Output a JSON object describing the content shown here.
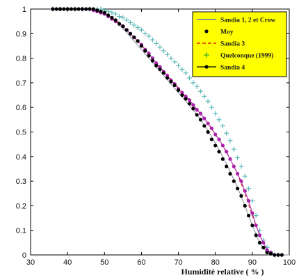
{
  "chart_data": {
    "type": "line",
    "title": "",
    "xlabel": "Humidité relative ( % )",
    "ylabel": "",
    "xlim": [
      30,
      100
    ],
    "ylim": [
      0,
      1
    ],
    "xticks": [
      "30",
      "40",
      "50",
      "60",
      "70",
      "80",
      "90",
      "100"
    ],
    "yticks": [
      "0",
      "0.1",
      "0.2",
      "0.3",
      "0.4",
      "0.5",
      "0.6",
      "0.7",
      "0.8",
      "0.9",
      "1"
    ],
    "grid": false,
    "legend_position": "top-right",
    "legend_bg": "#ffff00",
    "series": [
      {
        "name": "Sandia 1, 2 et Crow",
        "style": "line",
        "color": "#8a8aa0",
        "x": [
          36,
          40,
          45,
          48,
          50,
          52,
          54,
          56,
          58,
          60,
          62,
          64,
          66,
          68,
          70,
          72,
          74,
          76,
          78,
          80,
          82,
          84,
          86,
          88,
          90,
          92,
          94,
          96,
          98,
          100
        ],
        "y": [
          1.0,
          1.0,
          1.0,
          0.995,
          0.985,
          0.965,
          0.935,
          0.905,
          0.87,
          0.835,
          0.8,
          0.765,
          0.73,
          0.695,
          0.66,
          0.625,
          0.59,
          0.55,
          0.505,
          0.455,
          0.4,
          0.34,
          0.275,
          0.2,
          0.12,
          0.05,
          0.01,
          0.0,
          0.0,
          0.0
        ]
      },
      {
        "name": "Moy",
        "style": "dots",
        "color": "#000000",
        "x": [
          36,
          37,
          38,
          39,
          40,
          41,
          42,
          43,
          44,
          45,
          46,
          47,
          48,
          49,
          50,
          51,
          52,
          53,
          54,
          55,
          56,
          57,
          58,
          59,
          60,
          61,
          62,
          63,
          64,
          65,
          66,
          67,
          68,
          69,
          70,
          71,
          72,
          73,
          74,
          75,
          76,
          77,
          78,
          79,
          80,
          81,
          82,
          83,
          84,
          85,
          86,
          87,
          88,
          89,
          90,
          91,
          92,
          93,
          94,
          95,
          96,
          97,
          98
        ],
        "y": [
          1.0,
          1.0,
          1.0,
          1.0,
          1.0,
          1.0,
          1.0,
          1.0,
          1.0,
          1.0,
          1.0,
          1.0,
          0.995,
          0.99,
          0.985,
          0.975,
          0.965,
          0.955,
          0.94,
          0.93,
          0.915,
          0.9,
          0.885,
          0.87,
          0.85,
          0.83,
          0.81,
          0.79,
          0.77,
          0.755,
          0.74,
          0.72,
          0.705,
          0.69,
          0.67,
          0.65,
          0.635,
          0.615,
          0.595,
          0.57,
          0.55,
          0.525,
          0.5,
          0.47,
          0.445,
          0.42,
          0.39,
          0.36,
          0.33,
          0.3,
          0.27,
          0.24,
          0.2,
          0.16,
          0.12,
          0.08,
          0.05,
          0.03,
          0.01,
          0.005,
          0.0,
          0.0,
          0.0
        ]
      },
      {
        "name": "Sandia 3",
        "style": "dashed",
        "color": "#cc0000",
        "x": [
          36,
          40,
          45,
          48,
          50,
          52,
          54,
          56,
          58,
          60,
          62,
          64,
          66,
          68,
          70,
          72,
          74,
          76,
          78,
          80,
          82,
          84,
          86,
          88,
          90,
          92,
          94,
          96,
          98
        ],
        "y": [
          1.0,
          1.0,
          1.0,
          0.99,
          0.98,
          0.965,
          0.945,
          0.915,
          0.885,
          0.85,
          0.815,
          0.78,
          0.75,
          0.715,
          0.68,
          0.645,
          0.61,
          0.575,
          0.535,
          0.49,
          0.445,
          0.39,
          0.33,
          0.25,
          0.16,
          0.08,
          0.02,
          0.0,
          0.0
        ]
      },
      {
        "name": "Quelconque (1999)",
        "style": "plus",
        "color": "#5fb8b8",
        "x": [
          36,
          38,
          40,
          42,
          44,
          46,
          48,
          49,
          50,
          51,
          52,
          53,
          54,
          55,
          56,
          57,
          58,
          59,
          60,
          61,
          62,
          63,
          64,
          65,
          66,
          67,
          68,
          69,
          70,
          71,
          72,
          73,
          74,
          75,
          76,
          77,
          78,
          79,
          80,
          81,
          82,
          83,
          84,
          85,
          86,
          87,
          88,
          89,
          90,
          91,
          92,
          93,
          94,
          95,
          96,
          97
        ],
        "y": [
          1.0,
          1.0,
          1.0,
          1.0,
          1.0,
          1.0,
          1.0,
          1.0,
          0.995,
          0.99,
          0.985,
          0.98,
          0.97,
          0.965,
          0.955,
          0.945,
          0.935,
          0.925,
          0.915,
          0.9,
          0.89,
          0.875,
          0.86,
          0.845,
          0.83,
          0.815,
          0.8,
          0.785,
          0.77,
          0.755,
          0.74,
          0.72,
          0.7,
          0.685,
          0.665,
          0.645,
          0.625,
          0.6,
          0.575,
          0.55,
          0.525,
          0.495,
          0.465,
          0.43,
          0.395,
          0.36,
          0.32,
          0.27,
          0.22,
          0.16,
          0.1,
          0.06,
          0.03,
          0.01,
          0.0,
          0.0
        ]
      },
      {
        "name": "Sandia 4",
        "style": "line-dots",
        "color": "#aa22aa",
        "x": [
          36,
          37,
          38,
          39,
          40,
          41,
          42,
          43,
          44,
          45,
          46,
          47,
          48,
          49,
          50,
          51,
          52,
          53,
          54,
          55,
          56,
          57,
          58,
          59,
          60,
          61,
          62,
          63,
          64,
          65,
          66,
          67,
          68,
          69,
          70,
          71,
          72,
          73,
          74,
          75,
          76,
          77,
          78,
          79,
          80,
          81,
          82,
          83,
          84,
          85,
          86,
          87,
          88,
          89,
          90,
          91,
          92,
          93,
          94,
          95,
          96,
          97,
          98
        ],
        "y": [
          1.0,
          1.0,
          1.0,
          1.0,
          1.0,
          1.0,
          1.0,
          1.0,
          1.0,
          1.0,
          1.0,
          0.995,
          0.99,
          0.985,
          0.98,
          0.97,
          0.96,
          0.95,
          0.94,
          0.93,
          0.915,
          0.9,
          0.885,
          0.87,
          0.855,
          0.835,
          0.82,
          0.8,
          0.78,
          0.765,
          0.745,
          0.73,
          0.71,
          0.695,
          0.675,
          0.66,
          0.645,
          0.63,
          0.61,
          0.59,
          0.575,
          0.555,
          0.535,
          0.515,
          0.49,
          0.47,
          0.445,
          0.42,
          0.39,
          0.36,
          0.33,
          0.3,
          0.26,
          0.22,
          0.17,
          0.12,
          0.08,
          0.05,
          0.02,
          0.01,
          0.0,
          0.0,
          0.0
        ]
      }
    ]
  }
}
